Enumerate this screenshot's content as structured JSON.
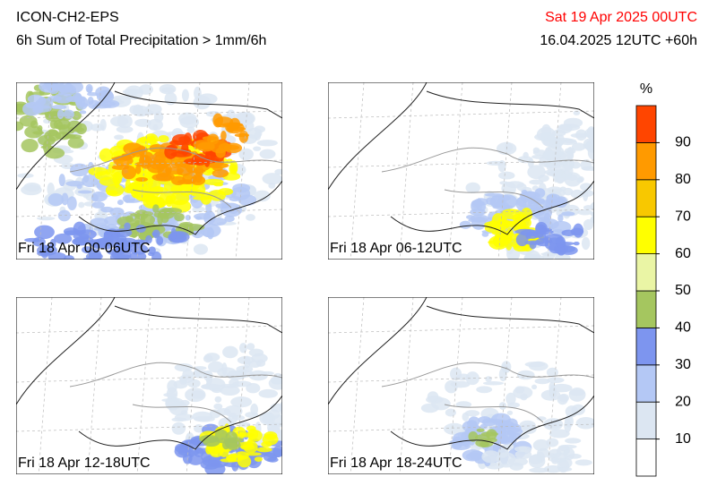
{
  "header": {
    "model": "ICON-CH2-EPS",
    "product": "6h Sum of Total Precipitation > 1mm/6h",
    "valid_time": "Sat 19 Apr 2025 00UTC",
    "run_time": "16.04.2025 12UTC +60h",
    "valid_time_color": "#ff0000"
  },
  "panels": [
    {
      "label": "Fri 18 Apr 00-06UTC"
    },
    {
      "label": "Fri 18 Apr 06-12UTC"
    },
    {
      "label": "Fri 18 Apr 12-18UTC"
    },
    {
      "label": "Fri 18 Apr 18-24UTC"
    }
  ],
  "colorbar": {
    "unit": "%",
    "limits": [
      0,
      100
    ],
    "ticks": [
      10,
      20,
      30,
      40,
      50,
      60,
      70,
      80,
      90
    ],
    "colors": [
      "#ffffff",
      "#dce6f2",
      "#b4c8f5",
      "#7d95ef",
      "#a5c65f",
      "#eaf5a5",
      "#ffff00",
      "#f8c800",
      "#ff9a00",
      "#ff4500"
    ]
  }
}
